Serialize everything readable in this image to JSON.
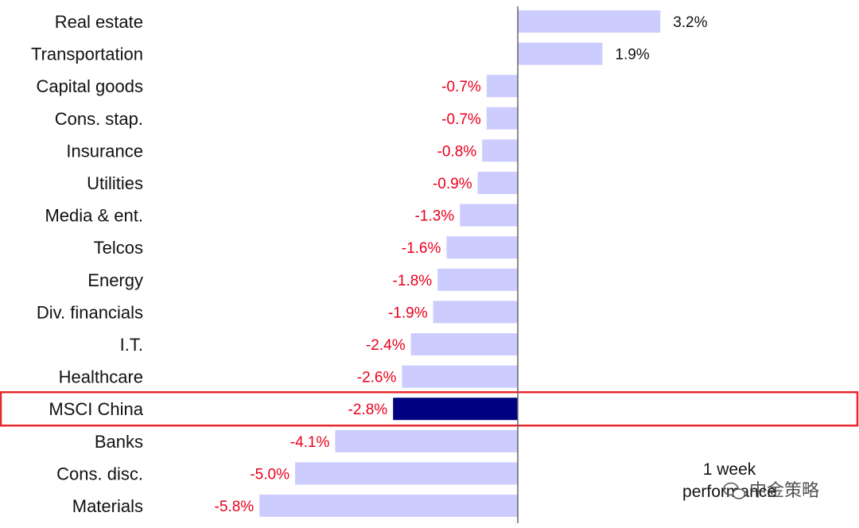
{
  "chart_data": {
    "type": "bar",
    "orientation": "horizontal",
    "categories": [
      "Real estate",
      "Transportation",
      "Capital goods",
      "Cons. stap.",
      "Insurance",
      "Utilities",
      "Media & ent.",
      "Telcos",
      "Energy",
      "Div. financials",
      "I.T.",
      "Healthcare",
      "MSCI China",
      "Banks",
      "Cons. disc.",
      "Materials"
    ],
    "values": [
      3.2,
      1.9,
      -0.7,
      -0.7,
      -0.8,
      -0.9,
      -1.3,
      -1.6,
      -1.8,
      -1.9,
      -2.4,
      -2.6,
      -2.8,
      -4.1,
      -5.0,
      -5.8
    ],
    "value_labels": [
      "3.2%",
      "1.9%",
      "-0.7%",
      "-0.7%",
      "-0.8%",
      "-0.9%",
      "-1.3%",
      "-1.6%",
      "-1.8%",
      "-1.9%",
      "-2.4%",
      "-2.6%",
      "-2.8%",
      "-4.1%",
      "-5.0%",
      "-5.8%"
    ],
    "highlight_category": "MSCI China",
    "annotation": [
      "1 week",
      "performance"
    ],
    "xlim": [
      -5.8,
      3.2
    ],
    "grid": false,
    "legend": "none",
    "colors": {
      "bar": "#ccccff",
      "highlight_bar": "#000080",
      "highlight_box": "#e8262d",
      "axis": "#666666",
      "positive_label": "#111111",
      "negative_label": "#e8001c"
    }
  },
  "watermark": {
    "text": "中金策略",
    "icon": "wechat-icon"
  }
}
